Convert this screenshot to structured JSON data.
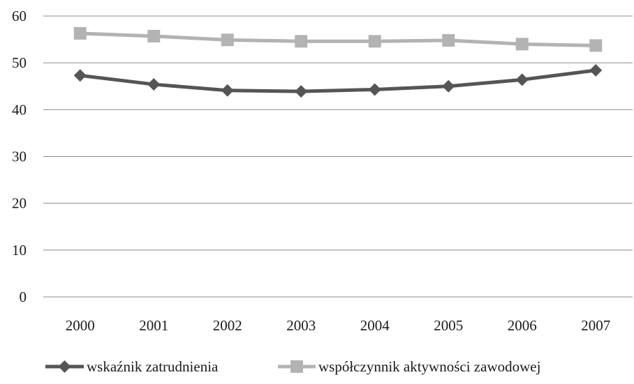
{
  "chart_data": {
    "type": "line",
    "categories": [
      "2000",
      "2001",
      "2002",
      "2003",
      "2004",
      "2005",
      "2006",
      "2007"
    ],
    "ylim": [
      0,
      60
    ],
    "yticks": [
      "0",
      "10",
      "20",
      "30",
      "40",
      "50",
      "60"
    ],
    "grid": "horizontal",
    "legend_position": "bottom",
    "series": [
      {
        "name": "wskaźnik zatrudnienia",
        "values": [
          47.3,
          45.4,
          44.1,
          43.9,
          44.3,
          45.0,
          46.4,
          48.4
        ],
        "color": "#555555",
        "marker": "diamond"
      },
      {
        "name": "współczynnik aktywności zawodowej",
        "values": [
          56.3,
          55.7,
          54.9,
          54.6,
          54.6,
          54.8,
          54.0,
          53.7
        ],
        "color": "#b3b3b3",
        "marker": "square"
      }
    ]
  },
  "colors": {
    "gridline": "#8c8c8c",
    "background": "#ffffff"
  }
}
